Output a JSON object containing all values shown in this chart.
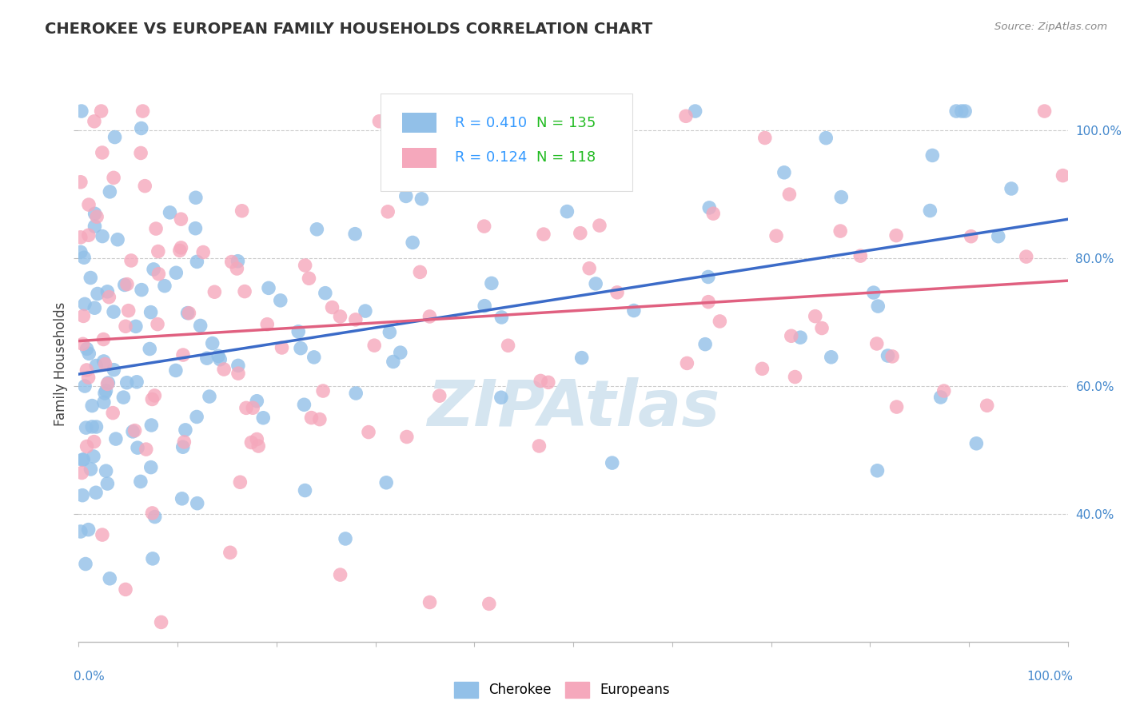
{
  "title": "CHEROKEE VS EUROPEAN FAMILY HOUSEHOLDS CORRELATION CHART",
  "source_text": "Source: ZipAtlas.com",
  "ylabel": "Family Households",
  "xlim": [
    0,
    100
  ],
  "ylim": [
    20,
    107
  ],
  "ytick_positions": [
    40,
    60,
    80,
    100
  ],
  "ytick_labels": [
    "40.0%",
    "60.0%",
    "80.0%",
    "100.0%"
  ],
  "cherokee_R": 0.41,
  "cherokee_N": 135,
  "europeans_R": 0.124,
  "europeans_N": 118,
  "cherokee_color": "#92C0E8",
  "europeans_color": "#F5A8BC",
  "cherokee_line_color": "#3B6BC8",
  "europeans_line_color": "#E06080",
  "legend_R_color": "#3399FF",
  "legend_N_color": "#22BB22",
  "watermark": "ZIPAtlas",
  "watermark_color": "#D5E5F0",
  "background_color": "#FFFFFF",
  "grid_color": "#CCCCCC",
  "title_color": "#333333",
  "axis_label_color": "#4488CC",
  "cherokee_seed": 42,
  "europeans_seed": 99
}
